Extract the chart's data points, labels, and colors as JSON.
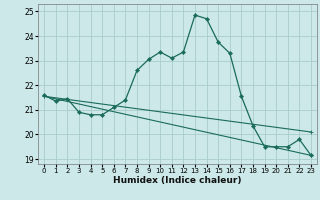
{
  "xlabel": "Humidex (Indice chaleur)",
  "background_color": "#cce8e8",
  "grid_color": "#aacccc",
  "line_color": "#1a6b5a",
  "xlim": [
    -0.5,
    23.5
  ],
  "ylim": [
    18.8,
    25.3
  ],
  "yticks": [
    19,
    20,
    21,
    22,
    23,
    24,
    25
  ],
  "xticks": [
    0,
    1,
    2,
    3,
    4,
    5,
    6,
    7,
    8,
    9,
    10,
    11,
    12,
    13,
    14,
    15,
    16,
    17,
    18,
    19,
    20,
    21,
    22,
    23
  ],
  "series1_x": [
    0,
    1,
    2,
    3,
    4,
    5,
    6,
    7,
    8,
    9,
    10,
    11,
    12,
    13,
    14,
    15,
    16,
    17,
    18,
    19,
    20,
    21,
    22,
    23
  ],
  "series1_y": [
    21.6,
    21.35,
    21.45,
    20.9,
    20.8,
    20.8,
    21.1,
    21.4,
    22.6,
    23.05,
    23.35,
    23.1,
    23.35,
    24.85,
    24.7,
    23.75,
    23.3,
    21.55,
    20.35,
    19.5,
    19.5,
    19.5,
    19.8,
    19.15
  ],
  "series2_x": [
    0,
    23
  ],
  "series2_y": [
    21.55,
    20.1
  ],
  "series3_x": [
    0,
    23
  ],
  "series3_y": [
    21.55,
    19.15
  ]
}
